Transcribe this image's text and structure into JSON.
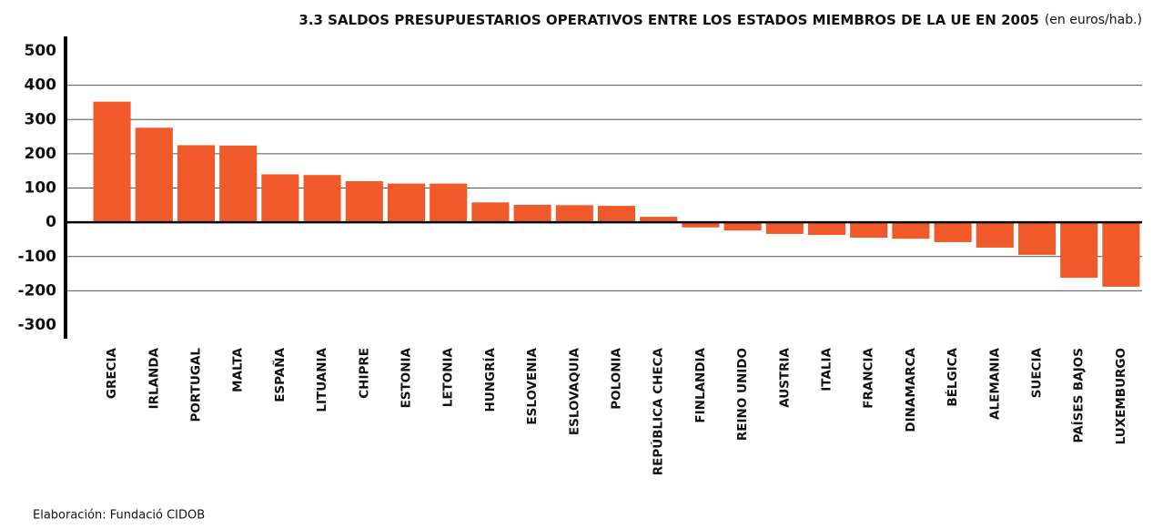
{
  "chart_data": {
    "type": "bar",
    "title": "3.3  SALDOS PRESUPUESTARIOS OPERATIVOS ENTRE LOS ESTADOS MIEMBROS DE LA UE EN 2005",
    "subtitle": "(en euros/hab.)",
    "source": "Elaboración: Fundació CIDOB",
    "categories": [
      "GRECIA",
      "IRLANDA",
      "PORTUGAL",
      "MALTA",
      "ESPAÑA",
      "LITUANIA",
      "CHIPRE",
      "ESTONIA",
      "LETONIA",
      "HUNGRÍA",
      "ESLOVENIA",
      "ESLOVAQUIA",
      "POLONIA",
      "REPÚBLICA CHECA",
      "FINLANDIA",
      "REINO UNIDO",
      "AUSTRIA",
      "ITALIA",
      "FRANCIA",
      "DINAMARCA",
      "BÉLGICA",
      "ALEMANIA",
      "SUECIA",
      "PAÍSES BAJOS",
      "LUXEMBURGO"
    ],
    "values": [
      352,
      276,
      225,
      224,
      140,
      138,
      120,
      113,
      113,
      58,
      51,
      50,
      48,
      16,
      -15,
      -24,
      -34,
      -37,
      -45,
      -48,
      -58,
      -74,
      -95,
      -162,
      -188
    ],
    "color": "#f05a2b",
    "ylim": [
      -300,
      500
    ],
    "yticks": [
      500,
      400,
      300,
      200,
      100,
      0,
      -100,
      -200,
      -300
    ],
    "grid": true
  }
}
